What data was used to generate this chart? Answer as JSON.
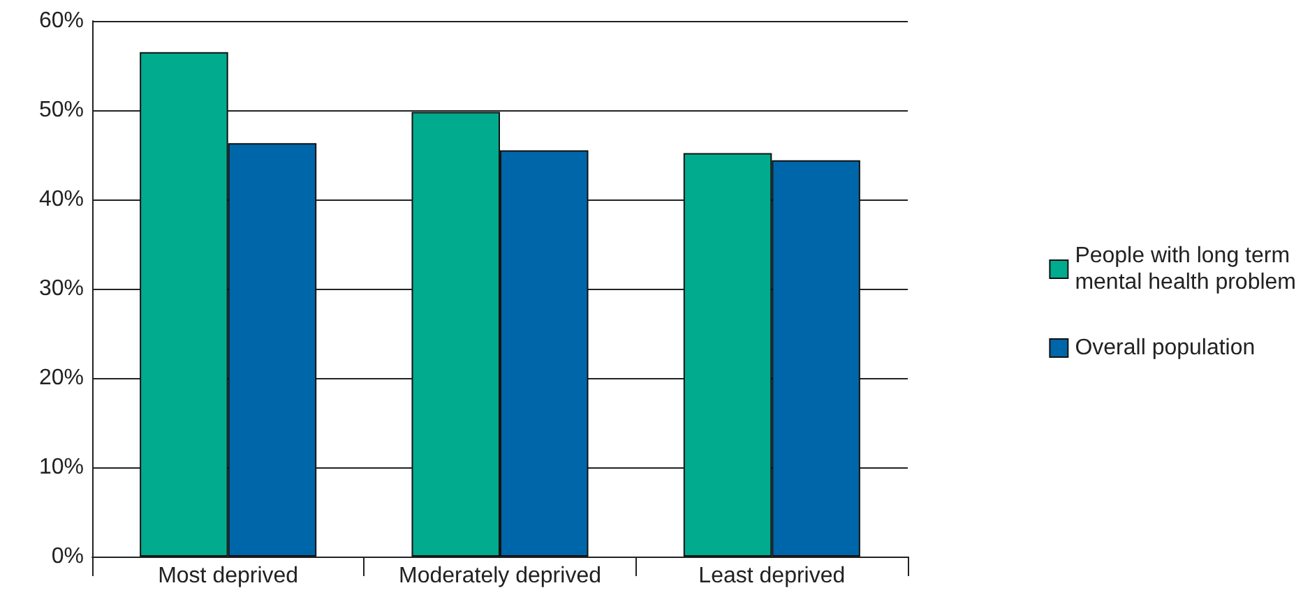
{
  "chart_data": {
    "type": "bar",
    "categories": [
      "Most deprived",
      "Moderately deprived",
      "Least deprived"
    ],
    "series": [
      {
        "name": "People with long term\nmental health problem",
        "color": "#00ab8e",
        "values": [
          56.5,
          49.8,
          45.2
        ]
      },
      {
        "name": "Overall population",
        "color": "#0066aa",
        "values": [
          46.3,
          45.5,
          44.4
        ]
      }
    ],
    "ylim": [
      0,
      60
    ],
    "yticks": [
      {
        "value": 0,
        "label": "0%"
      },
      {
        "value": 10,
        "label": "10%"
      },
      {
        "value": 20,
        "label": "20%"
      },
      {
        "value": 30,
        "label": "30%"
      },
      {
        "value": 40,
        "label": "40%"
      },
      {
        "value": 50,
        "label": "50%"
      },
      {
        "value": 60,
        "label": "60%"
      }
    ],
    "grid": "y",
    "legend": "right"
  }
}
